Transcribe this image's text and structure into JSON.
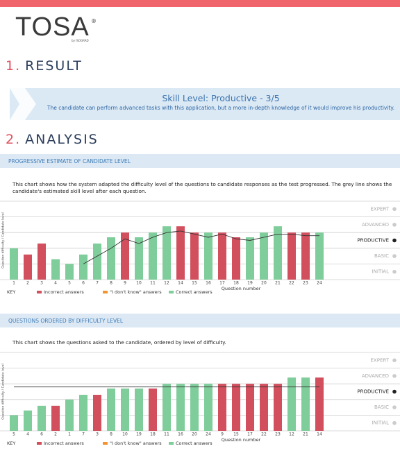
{
  "header": {
    "logo": "TOSA",
    "registered": "®",
    "byline": "by ISOGRAD"
  },
  "sections": [
    {
      "number": "1.",
      "title": "RESULT"
    },
    {
      "number": "2.",
      "title": "ANALYSIS"
    }
  ],
  "result": {
    "title": "Skill Level: Productive - 3/5",
    "text": "The candidate can perform advanced tasks with this application, but a more in-depth knowledge of it would improve his productivity."
  },
  "chart_data": [
    {
      "type": "bar",
      "title": "PROGRESSIVE ESTIMATE OF CANDIDATE LEVEL",
      "description": "This chart shows how the system adapted the difficulty level of the questions to candidate responses as the test progressed. The grey line shows the candidate's estimated skill level after each question.",
      "xlabel": "Question number",
      "ylabel": "Question difficulty / Candidate level",
      "legend_title": "KEY",
      "categories": [
        "1",
        "2",
        "3",
        "4",
        "5",
        "6",
        "7",
        "8",
        "9",
        "10",
        "11",
        "12",
        "14",
        "15",
        "16",
        "17",
        "18",
        "19",
        "20",
        "21",
        "22",
        "23",
        "24"
      ],
      "series": [
        {
          "name": "Incorrect answers",
          "color": "#d24f5e",
          "values": [
            null,
            1.6,
            2.3,
            null,
            null,
            null,
            null,
            null,
            3.0,
            null,
            null,
            null,
            3.4,
            3.0,
            null,
            3.0,
            2.7,
            null,
            null,
            null,
            3.0,
            3.0,
            null
          ]
        },
        {
          "name": "\"I don't know\" answers",
          "color": "#f3952f",
          "values": [
            null,
            null,
            null,
            null,
            null,
            null,
            null,
            null,
            null,
            null,
            null,
            null,
            null,
            null,
            null,
            null,
            null,
            null,
            null,
            null,
            null,
            null,
            null
          ]
        },
        {
          "name": "Correct answers",
          "color": "#7fcd9b",
          "values": [
            2.0,
            null,
            null,
            1.3,
            1.0,
            1.6,
            2.3,
            2.7,
            null,
            2.7,
            3.0,
            3.4,
            null,
            null,
            3.0,
            null,
            null,
            2.7,
            3.0,
            3.4,
            null,
            null,
            3.0
          ]
        }
      ],
      "line": {
        "color": "#333333",
        "values": [
          null,
          null,
          null,
          null,
          null,
          1.0,
          1.5,
          2.0,
          2.6,
          2.3,
          2.7,
          3.0,
          3.1,
          2.9,
          2.7,
          2.9,
          2.6,
          2.5,
          2.7,
          2.9,
          2.9,
          2.8,
          2.8
        ]
      },
      "ylim": [
        0,
        5
      ],
      "yticks": [
        {
          "value": 4.5,
          "label": "EXPERT"
        },
        {
          "value": 3.5,
          "label": "ADVANCED"
        },
        {
          "value": 2.5,
          "label": "PRODUCTIVE"
        },
        {
          "value": 1.5,
          "label": "BASIC"
        },
        {
          "value": 0.5,
          "label": "INITIAL"
        }
      ],
      "highlight_tick": 2
    },
    {
      "type": "bar",
      "title": "QUESTIONS ORDERED BY DIFFICULTY LEVEL",
      "description": "This chart shows the questions asked to the candidate, ordered by level of difficulty.",
      "xlabel": "Question number",
      "ylabel": "Question difficulty / Candidate level",
      "legend_title": "KEY",
      "categories": [
        "5",
        "4",
        "6",
        "2",
        "1",
        "7",
        "3",
        "8",
        "10",
        "19",
        "18",
        "11",
        "16",
        "20",
        "24",
        "9",
        "15",
        "17",
        "22",
        "23",
        "12",
        "21",
        "14"
      ],
      "series": [
        {
          "name": "Incorrect answers",
          "color": "#d24f5e",
          "values": [
            null,
            null,
            null,
            1.6,
            null,
            null,
            2.3,
            null,
            null,
            null,
            2.7,
            null,
            null,
            null,
            null,
            3.0,
            3.0,
            3.0,
            3.0,
            3.0,
            null,
            null,
            3.4
          ]
        },
        {
          "name": "\"I don't know\" answers",
          "color": "#f3952f",
          "values": [
            null,
            null,
            null,
            null,
            null,
            null,
            null,
            null,
            null,
            null,
            null,
            null,
            null,
            null,
            null,
            null,
            null,
            null,
            null,
            null,
            null,
            null,
            null
          ]
        },
        {
          "name": "Correct answers",
          "color": "#7fcd9b",
          "values": [
            1.0,
            1.3,
            1.6,
            null,
            2.0,
            2.3,
            null,
            2.7,
            2.7,
            2.7,
            null,
            3.0,
            3.0,
            3.0,
            3.0,
            null,
            null,
            null,
            null,
            null,
            3.4,
            3.4,
            null
          ]
        }
      ],
      "line": {
        "color": "#333333",
        "value": 2.8
      },
      "ylim": [
        0,
        5
      ],
      "yticks": [
        {
          "value": 4.5,
          "label": "EXPERT"
        },
        {
          "value": 3.5,
          "label": "ADVANCED"
        },
        {
          "value": 2.5,
          "label": "PRODUCTIVE"
        },
        {
          "value": 1.5,
          "label": "BASIC"
        },
        {
          "value": 0.5,
          "label": "INITIAL"
        }
      ],
      "highlight_tick": 2
    }
  ]
}
